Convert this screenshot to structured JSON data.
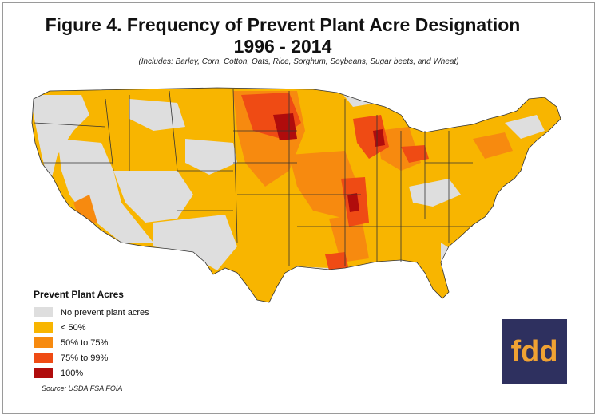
{
  "title_line1": "Figure 4. Frequency of Prevent Plant Acre Designation",
  "title_line2": "1996 - 2014",
  "subtitle": "(Includes: Barley, Corn, Cotton, Oats, Rice, Sorghum, Soybeans, Sugar beets, and Wheat)",
  "legend": {
    "title": "Prevent Plant Acres",
    "items": [
      {
        "label": "No prevent plant acres",
        "color": "#dedede"
      },
      {
        "label": "< 50%",
        "color": "#f8b500"
      },
      {
        "label": "50% to 75%",
        "color": "#f78a0f"
      },
      {
        "label": "75% to 99%",
        "color": "#ef4b14"
      },
      {
        "label": "100%",
        "color": "#b00c0c"
      }
    ]
  },
  "source": "Source: USDA FSA FOIA",
  "logo_text": "fdd",
  "logo_colors": {
    "background": "#2e305f",
    "text": "#f0a233"
  }
}
